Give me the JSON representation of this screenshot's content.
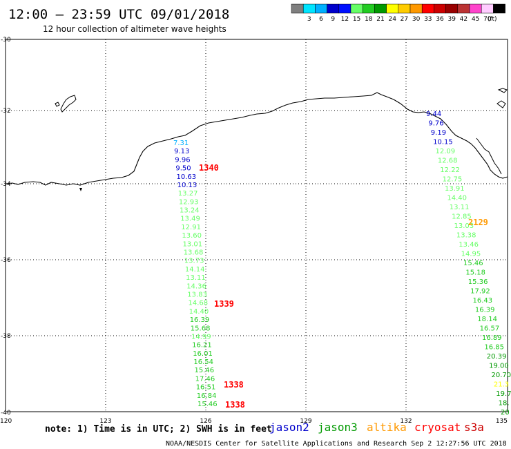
{
  "header": {
    "title": "12:00 — 23:59 UTC 09/01/2018",
    "subtitle": "12 hour collection of altimeter wave heights"
  },
  "legend": {
    "unit": "(ft)",
    "swatches": [
      {
        "color": "#7f7f7f",
        "label": ""
      },
      {
        "color": "#00e5ff",
        "label": "3"
      },
      {
        "color": "#00b0ff",
        "label": "6"
      },
      {
        "color": "#0000cc",
        "label": "9"
      },
      {
        "color": "#0010ff",
        "label": "12"
      },
      {
        "color": "#66ff66",
        "label": "15"
      },
      {
        "color": "#22cc22",
        "label": "18"
      },
      {
        "color": "#009900",
        "label": "21"
      },
      {
        "color": "#ffff00",
        "label": "24"
      },
      {
        "color": "#ffcc00",
        "label": "27"
      },
      {
        "color": "#ff9900",
        "label": "30"
      },
      {
        "color": "#ff0000",
        "label": "33"
      },
      {
        "color": "#cc0000",
        "label": "36"
      },
      {
        "color": "#990000",
        "label": "39"
      },
      {
        "color": "#bb3333",
        "label": "42"
      },
      {
        "color": "#ff44cc",
        "label": "45"
      },
      {
        "color": "#ffccff",
        "label": "70"
      },
      {
        "color": "#000000",
        "label": ""
      }
    ]
  },
  "axes": {
    "lon_ticks": [
      "120",
      "123",
      "126",
      "129",
      "132",
      "135"
    ],
    "lat_ticks": [
      "-30",
      "-32",
      "-34",
      "-36",
      "-38",
      "-40"
    ]
  },
  "tracks": [
    {
      "values": [
        "7.31",
        "9.13",
        "9.96",
        "9.50",
        "10.63",
        "10.13",
        "13.27",
        "12.93",
        "13.24",
        "13.49",
        "12.91",
        "13.60",
        "13.01",
        "13.68",
        "13.73",
        "14.14",
        "13.11",
        "14.36",
        "13.83",
        "14.68",
        "14.40",
        "16.39",
        "15.68",
        "14.99",
        "16.21",
        "16.01",
        "16.54",
        "15.46",
        "17.46",
        "16.51",
        "16.84",
        "15.46"
      ],
      "colors": [
        "#00b0ff",
        "#0000cc",
        "#0000cc",
        "#0000cc",
        "#0000cc",
        "#0000cc",
        "#66ff66",
        "#66ff66",
        "#66ff66",
        "#66ff66",
        "#66ff66",
        "#66ff66",
        "#66ff66",
        "#66ff66",
        "#66ff66",
        "#66ff66",
        "#66ff66",
        "#66ff66",
        "#66ff66",
        "#66ff66",
        "#66ff66",
        "#22cc22",
        "#22cc22",
        "#66ff66",
        "#22cc22",
        "#22cc22",
        "#22cc22",
        "#22cc22",
        "#22cc22",
        "#22cc22",
        "#22cc22",
        "#22cc22"
      ]
    },
    {
      "values": [
        "9.44",
        "9.76",
        "9.19",
        "10.15",
        "12.09",
        "12.68",
        "12.22",
        "12.75",
        "13.91",
        "14.40",
        "13.11",
        "12.85",
        "13.03",
        "13.38",
        "13.46",
        "14.95",
        "15.46",
        "15.18",
        "15.36",
        "17.92",
        "16.43",
        "16.39",
        "18.14",
        "16.57",
        "16.89",
        "16.85",
        "20.39",
        "19.00",
        "20.70",
        "21.3",
        "19.7",
        "18.",
        "20"
      ],
      "colors": [
        "#0000cc",
        "#0000cc",
        "#0000cc",
        "#0000cc",
        "#66ff66",
        "#66ff66",
        "#66ff66",
        "#66ff66",
        "#66ff66",
        "#66ff66",
        "#66ff66",
        "#66ff66",
        "#66ff66",
        "#66ff66",
        "#66ff66",
        "#66ff66",
        "#22cc22",
        "#22cc22",
        "#22cc22",
        "#22cc22",
        "#22cc22",
        "#22cc22",
        "#22cc22",
        "#22cc22",
        "#22cc22",
        "#22cc22",
        "#009900",
        "#009900",
        "#009900",
        "#ffff00",
        "#009900",
        "#009900",
        "#009900"
      ]
    }
  ],
  "time_labels": [
    {
      "text": "1340",
      "color": "#ff0000"
    },
    {
      "text": "1339",
      "color": "#ff0000"
    },
    {
      "text": "1338",
      "color": "#ff0000"
    },
    {
      "text": "1338",
      "color": "#ff0000"
    },
    {
      "text": "2129",
      "color": "#ff9900"
    }
  ],
  "footer": {
    "note": "note: 1) Time is in UTC; 2) SWH is in feet",
    "satellites": [
      {
        "name": "jason2",
        "color": "#0000cc"
      },
      {
        "name": "jason3",
        "color": "#009900"
      },
      {
        "name": "altika",
        "color": "#ff9900"
      },
      {
        "name": "cryosat",
        "color": "#ff0000"
      },
      {
        "name": "s3a",
        "color": "#cc0000"
      }
    ],
    "credit": "NOAA/NESDIS Center for Satellite Applications and Research   Sep  2 12:27:56 UTC 2018"
  }
}
